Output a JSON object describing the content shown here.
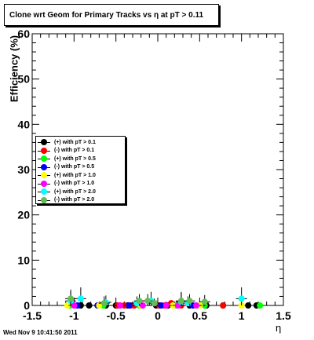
{
  "title": "Clone wrt Geom for Primary Tracks vs    η at pT > 0.11",
  "footer": "Wed Nov  9 10:41:50 2011",
  "chart_data": {
    "type": "scatter",
    "title": "Clone wrt Geom for Primary Tracks vs    η at pT > 0.11",
    "xlabel": "η",
    "ylabel": "Efficiency (%)",
    "xlim": [
      -1.5,
      1.5
    ],
    "ylim": [
      0,
      60
    ],
    "x_ticks": [
      "-1.5",
      "-1",
      "-0.5",
      "0",
      "0.5",
      "1",
      "1.5"
    ],
    "y_ticks": [
      "0",
      "10",
      "20",
      "30",
      "40",
      "50",
      "60"
    ],
    "legend_position": "left-middle",
    "series": [
      {
        "name": "(+) with pT > 0.1",
        "color": "#000000",
        "points": [
          [
            -0.92,
            0
          ],
          [
            -0.82,
            0
          ],
          [
            -0.62,
            0
          ],
          [
            -0.5,
            0
          ],
          [
            -0.36,
            0
          ],
          [
            -0.02,
            0
          ],
          [
            0.12,
            0
          ],
          [
            0.38,
            0
          ],
          [
            0.58,
            0
          ],
          [
            0.78,
            0
          ],
          [
            1.08,
            0
          ],
          [
            1.18,
            0
          ]
        ],
        "errors": [
          0,
          0,
          0,
          0,
          0,
          0,
          0,
          0,
          0,
          0,
          0,
          0
        ]
      },
      {
        "name": "(-) with pT > 0.1",
        "color": "#ff0000",
        "points": [
          [
            -0.48,
            0
          ],
          [
            -0.4,
            0
          ],
          [
            -0.32,
            0
          ],
          [
            -0.28,
            0
          ],
          [
            0.02,
            0
          ],
          [
            0.08,
            0
          ],
          [
            0.16,
            0.5
          ],
          [
            0.28,
            0
          ],
          [
            0.78,
            0
          ]
        ],
        "errors": [
          0,
          0,
          0,
          0,
          0,
          0,
          0,
          0,
          0
        ]
      },
      {
        "name": "(+) with pT > 0.5",
        "color": "#00ff00",
        "points": [
          [
            -1.05,
            0
          ],
          [
            -0.65,
            0
          ],
          [
            -0.22,
            0
          ],
          [
            0.22,
            0
          ],
          [
            0.56,
            0
          ],
          [
            1.22,
            0
          ]
        ],
        "errors": [
          0,
          0,
          0,
          0,
          0,
          0
        ]
      },
      {
        "name": "(-) with pT > 0.5",
        "color": "#0000ff",
        "points": [
          [
            -0.96,
            0
          ],
          [
            -0.72,
            0
          ],
          [
            -0.34,
            0
          ],
          [
            0.04,
            0
          ],
          [
            0.42,
            0
          ]
        ],
        "errors": [
          0,
          0,
          0,
          0,
          0
        ]
      },
      {
        "name": "(+) with pT > 1.0",
        "color": "#ffff00",
        "points": [
          [
            -1.08,
            0
          ],
          [
            -0.7,
            0
          ],
          [
            -0.2,
            0
          ],
          [
            0.18,
            0
          ],
          [
            0.5,
            0
          ],
          [
            1.0,
            0
          ]
        ],
        "errors": [
          0,
          0,
          0,
          0,
          0,
          0
        ]
      },
      {
        "name": "(-) with pT > 1.0",
        "color": "#ff00ff",
        "points": [
          [
            -1.0,
            0
          ],
          [
            -0.45,
            0
          ],
          [
            -0.18,
            0
          ],
          [
            0.1,
            0
          ],
          [
            0.24,
            0
          ],
          [
            0.46,
            0
          ]
        ],
        "errors": [
          0,
          0,
          0,
          0,
          0,
          0
        ]
      },
      {
        "name": "(+) with pT > 2.0",
        "color": "#00ffff",
        "points": [
          [
            -1.04,
            1
          ],
          [
            -0.92,
            1.5
          ],
          [
            -0.62,
            0.7
          ],
          [
            -0.25,
            0.5
          ],
          [
            -0.08,
            1
          ],
          [
            0.28,
            0.8
          ],
          [
            0.36,
            0.5
          ],
          [
            1.0,
            1.5
          ]
        ],
        "errors": [
          2,
          2.5,
          1.5,
          1.5,
          2,
          2,
          1.5,
          2.5
        ]
      },
      {
        "name": "(-) with pT > 2.0",
        "color": "#66bb55",
        "points": [
          [
            -1.04,
            1.5
          ],
          [
            -0.64,
            0.5
          ],
          [
            -0.22,
            1
          ],
          [
            -0.12,
            1
          ],
          [
            -0.04,
            0.5
          ],
          [
            0.28,
            1
          ],
          [
            0.38,
            1
          ],
          [
            0.56,
            0.8
          ]
        ],
        "errors": [
          2,
          1.5,
          1.5,
          1.5,
          1,
          2,
          1.5,
          1.5
        ]
      }
    ]
  }
}
